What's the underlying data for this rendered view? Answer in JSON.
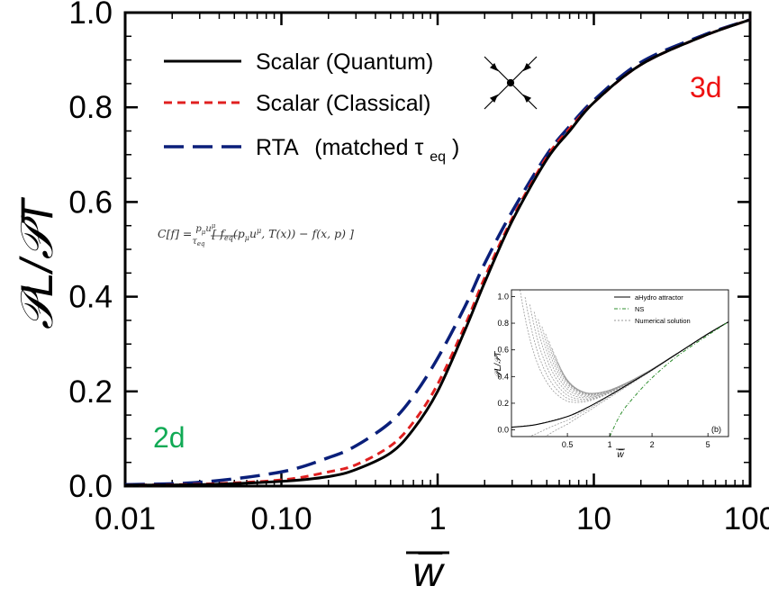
{
  "chart_data": {
    "type": "line",
    "xscale": "log",
    "xlim": [
      0.01,
      100
    ],
    "ylim": [
      0.0,
      1.0
    ],
    "xlabel": "w̅",
    "ylabel": "𝒫L/𝒫T",
    "x_tick_labels": [
      "0.01",
      "0.10",
      "1",
      "10",
      "100"
    ],
    "x_ticks": [
      0.01,
      0.1,
      1,
      10,
      100
    ],
    "y_tick_labels": [
      "0.0",
      "0.2",
      "0.4",
      "0.6",
      "0.8",
      "1.0"
    ],
    "y_ticks": [
      0.0,
      0.2,
      0.4,
      0.6,
      0.8,
      1.0
    ],
    "legend_position": "top-left",
    "series": [
      {
        "name": "Scalar (Quantum)",
        "color": "#000000",
        "style": "solid",
        "x": [
          0.01,
          0.03,
          0.1,
          0.2,
          0.3,
          0.5,
          0.7,
          1.0,
          1.5,
          2.0,
          3.0,
          5.0,
          7.0,
          10,
          20,
          50,
          100
        ],
        "y": [
          0.002,
          0.003,
          0.01,
          0.02,
          0.035,
          0.07,
          0.12,
          0.2,
          0.33,
          0.43,
          0.56,
          0.69,
          0.75,
          0.81,
          0.89,
          0.95,
          0.985
        ]
      },
      {
        "name": "Scalar (Classical)",
        "color": "#e02020",
        "style": "dashed",
        "x": [
          0.01,
          0.03,
          0.1,
          0.2,
          0.3,
          0.5,
          0.7,
          1.0,
          1.5,
          2.0,
          3.0,
          5.0,
          7.0,
          10,
          20,
          50,
          100
        ],
        "y": [
          0.002,
          0.004,
          0.013,
          0.03,
          0.045,
          0.085,
          0.135,
          0.215,
          0.34,
          0.44,
          0.565,
          0.695,
          0.755,
          0.81,
          0.89,
          0.95,
          0.985
        ]
      },
      {
        "name": "RTA (matched τeq)",
        "color": "#0a1f7a",
        "style": "long-dashed",
        "x": [
          0.01,
          0.03,
          0.1,
          0.2,
          0.3,
          0.5,
          0.7,
          1.0,
          1.5,
          2.0,
          3.0,
          5.0,
          7.0,
          10,
          20,
          50,
          100
        ],
        "y": [
          0.003,
          0.008,
          0.03,
          0.06,
          0.085,
          0.135,
          0.19,
          0.27,
          0.38,
          0.47,
          0.58,
          0.7,
          0.76,
          0.815,
          0.895,
          0.952,
          0.985
        ]
      }
    ],
    "legend": {
      "entries": [
        "Scalar (Quantum)",
        "Scalar (Classical)",
        "RTA"
      ],
      "rta_suffix_main": "(matched τ",
      "rta_suffix_sub": "eq",
      "rta_suffix_close": ")"
    },
    "annotations": {
      "corner_3d": "3d",
      "corner_2d": "2d",
      "corner_3d_color": "#ee1111",
      "corner_2d_color": "#11aa55",
      "equation": "C[f] = (pμuμ / τeq) [ feq(pμuμ, T(x)) − f(x,p) ]"
    },
    "inset": {
      "type": "line",
      "xscale": "log",
      "xlim": [
        0.2,
        7
      ],
      "ylim": [
        -0.05,
        1.05
      ],
      "x_tick_labels": [
        "0.5",
        "1",
        "2",
        "5"
      ],
      "x_ticks": [
        0.5,
        1,
        2,
        5
      ],
      "y_tick_labels": [
        "0.0",
        "0.2",
        "0.4",
        "0.6",
        "0.8",
        "1.0"
      ],
      "y_ticks": [
        0.0,
        0.2,
        0.4,
        0.6,
        0.8,
        1.0
      ],
      "xlabel": "w̅",
      "ylabel": "𝒫L/𝒫T",
      "panel_label": "(b)",
      "legend": [
        "aHydro attractor",
        "NS",
        "Numerical solution"
      ],
      "attractor": {
        "x": [
          0.2,
          0.3,
          0.5,
          0.7,
          1.0,
          1.5,
          2.0,
          3.0,
          5.0,
          7.0
        ],
        "y": [
          0.02,
          0.04,
          0.1,
          0.17,
          0.26,
          0.37,
          0.45,
          0.57,
          0.72,
          0.81
        ]
      },
      "ns": {
        "x": [
          1.0,
          1.2,
          1.5,
          2.0,
          3.0,
          5.0,
          7.0
        ],
        "y": [
          -0.05,
          0.12,
          0.25,
          0.39,
          0.55,
          0.71,
          0.81
        ]
      }
    }
  }
}
